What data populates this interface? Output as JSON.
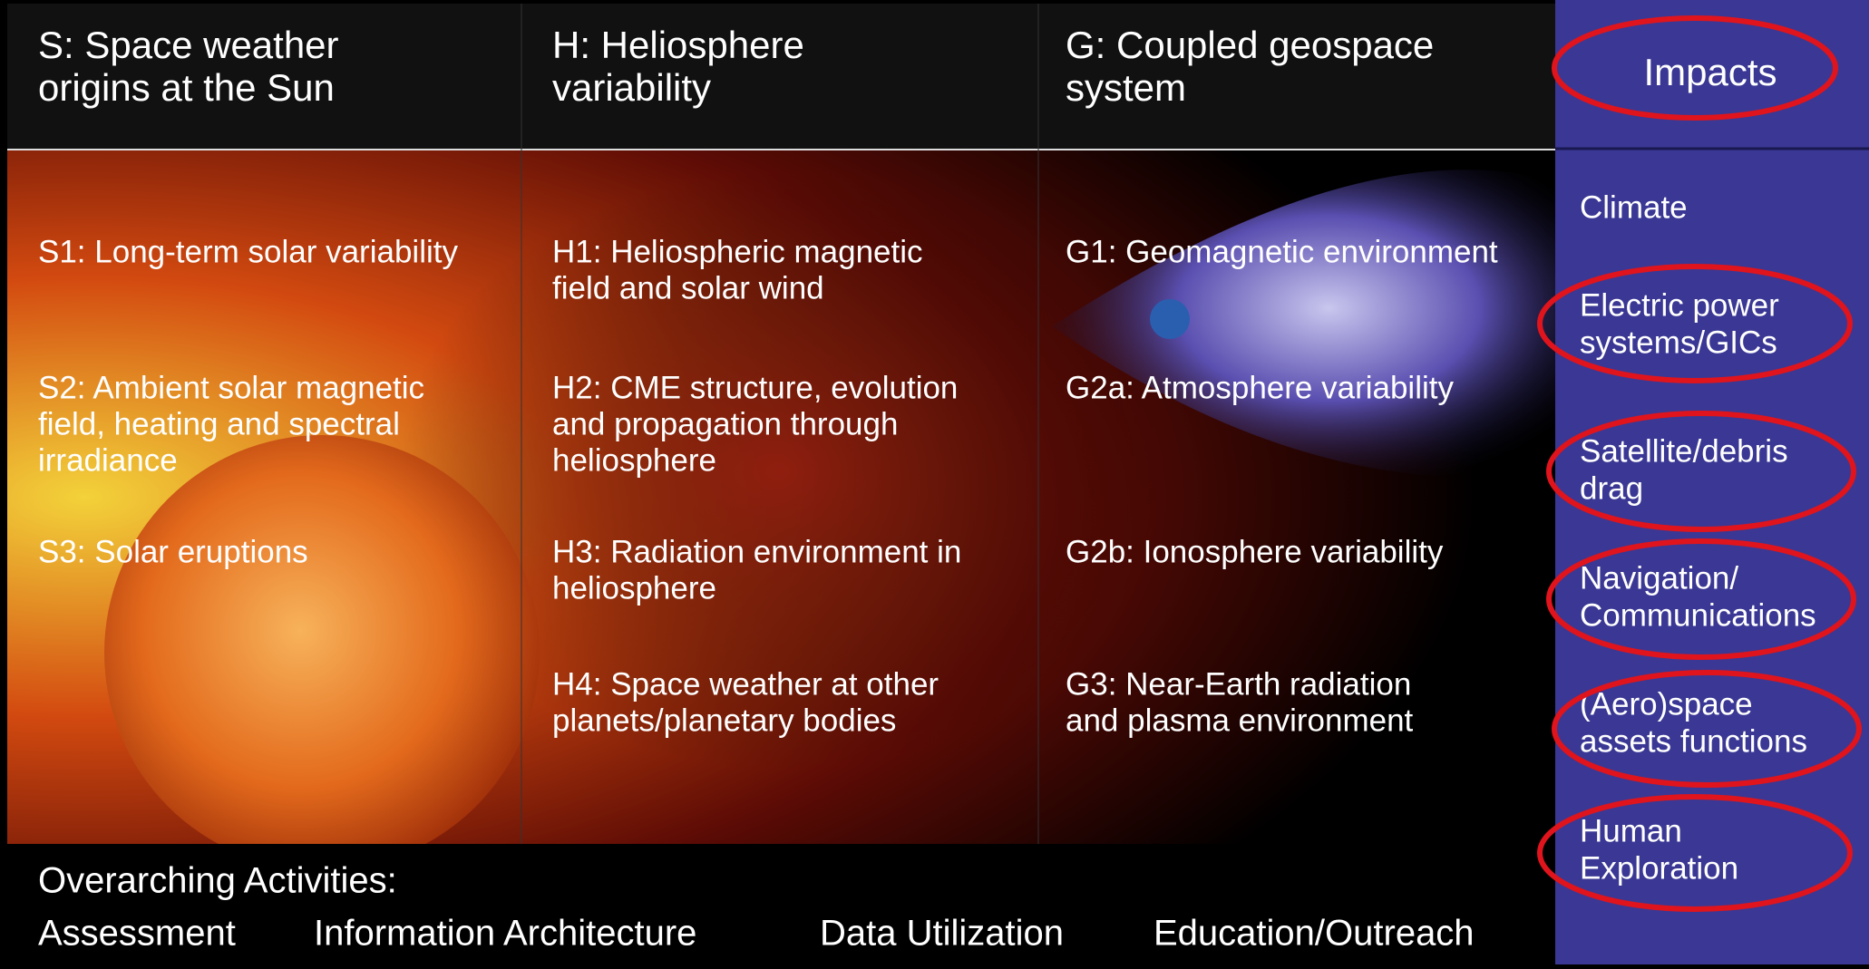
{
  "header": {
    "columns": [
      {
        "lines": [
          "S: Space weather",
          "origins at the Sun"
        ]
      },
      {
        "lines": [
          "H: Heliosphere",
          "variability"
        ]
      },
      {
        "lines": [
          "G: Coupled geospace",
          "system"
        ]
      }
    ],
    "impacts_title": "Impacts"
  },
  "columns": [
    {
      "items": [
        {
          "lines": [
            "S1: Long-term solar variability"
          ]
        },
        {
          "lines": [
            "S2: Ambient solar magnetic",
            "field, heating and spectral",
            "irradiance"
          ]
        },
        {
          "lines": [
            "S3: Solar eruptions"
          ]
        }
      ]
    },
    {
      "items": [
        {
          "lines": [
            "H1: Heliospheric magnetic",
            "field and solar wind"
          ]
        },
        {
          "lines": [
            "H2: CME structure, evolution",
            "and propagation through",
            "heliosphere"
          ]
        },
        {
          "lines": [
            "H3: Radiation environment in",
            "heliosphere"
          ]
        },
        {
          "lines": [
            "H4: Space weather at other",
            "planets/planetary bodies"
          ]
        }
      ]
    },
    {
      "items": [
        {
          "lines": [
            "G1: Geomagnetic environment"
          ]
        },
        {
          "lines": [
            "G2a: Atmosphere variability"
          ]
        },
        {
          "lines": [
            "G2b: Ionosphere variability"
          ]
        },
        {
          "lines": [
            "G3: Near-Earth radiation",
            "and plasma environment"
          ]
        }
      ]
    }
  ],
  "impacts": [
    {
      "lines": [
        "Climate"
      ]
    },
    {
      "lines": [
        "Electric power",
        "systems/GICs"
      ]
    },
    {
      "lines": [
        "Satellite/debris",
        "drag"
      ]
    },
    {
      "lines": [
        "Navigation/",
        "Communications"
      ]
    },
    {
      "lines": [
        "(Aero)space",
        "assets functions"
      ]
    },
    {
      "lines": [
        "Human",
        "Exploration"
      ]
    }
  ],
  "overarching": {
    "title": "Overarching Activities:",
    "items": [
      "Assessment",
      "Information Architecture",
      "Data Utilization",
      "Education/Outreach"
    ]
  }
}
